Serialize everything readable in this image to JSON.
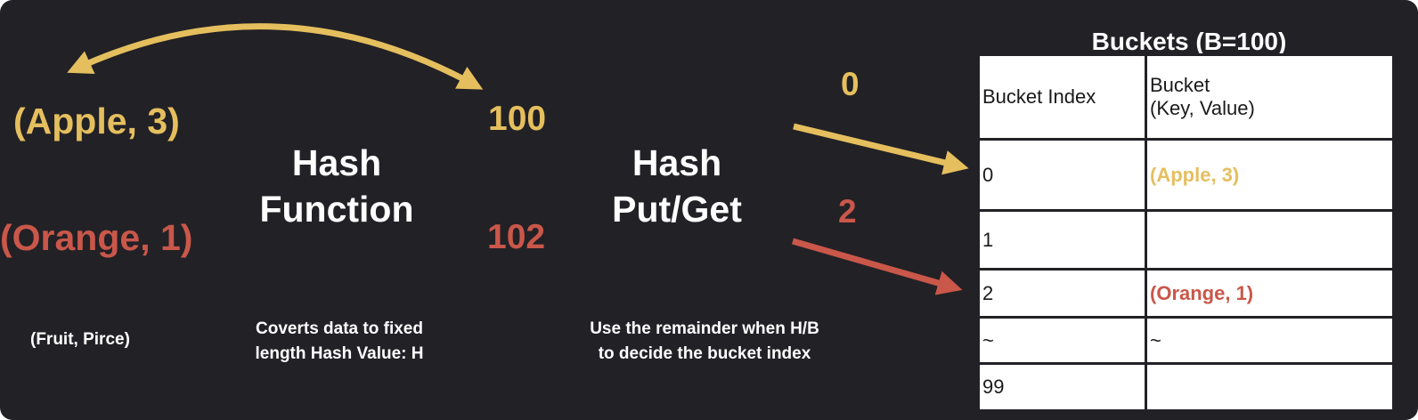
{
  "pairs": {
    "apple": "(Apple, 3)",
    "orange": "(Orange, 1)",
    "caption": "(Fruit, Pirce)"
  },
  "hash_function": {
    "title_line1": "Hash",
    "title_line2": "Function",
    "caption_line1": "Coverts data to fixed",
    "caption_line2": "length Hash Value: H"
  },
  "hash_values": {
    "apple": "100",
    "orange": "102"
  },
  "hash_putget": {
    "title_line1": "Hash",
    "title_line2": "Put/Get",
    "caption_line1": "Use the remainder when H/B",
    "caption_line2": "to decide the bucket index"
  },
  "bucket_indices": {
    "apple": "0",
    "orange": "2"
  },
  "buckets": {
    "title": "Buckets (B=100)",
    "header": {
      "index": "Bucket Index",
      "bucket_line1": "Bucket",
      "bucket_line2": "(Key, Value)"
    },
    "rows": [
      {
        "index": "0",
        "value": "(Apple, 3)"
      },
      {
        "index": "1",
        "value": ""
      },
      {
        "index": "2",
        "value": "(Orange, 1)"
      },
      {
        "index": "~",
        "value": "~"
      },
      {
        "index": "99",
        "value": ""
      }
    ]
  },
  "colors": {
    "background": "#222126",
    "apple": "#e5bf5e",
    "orange": "#c9574a",
    "text": "#ffffff"
  }
}
